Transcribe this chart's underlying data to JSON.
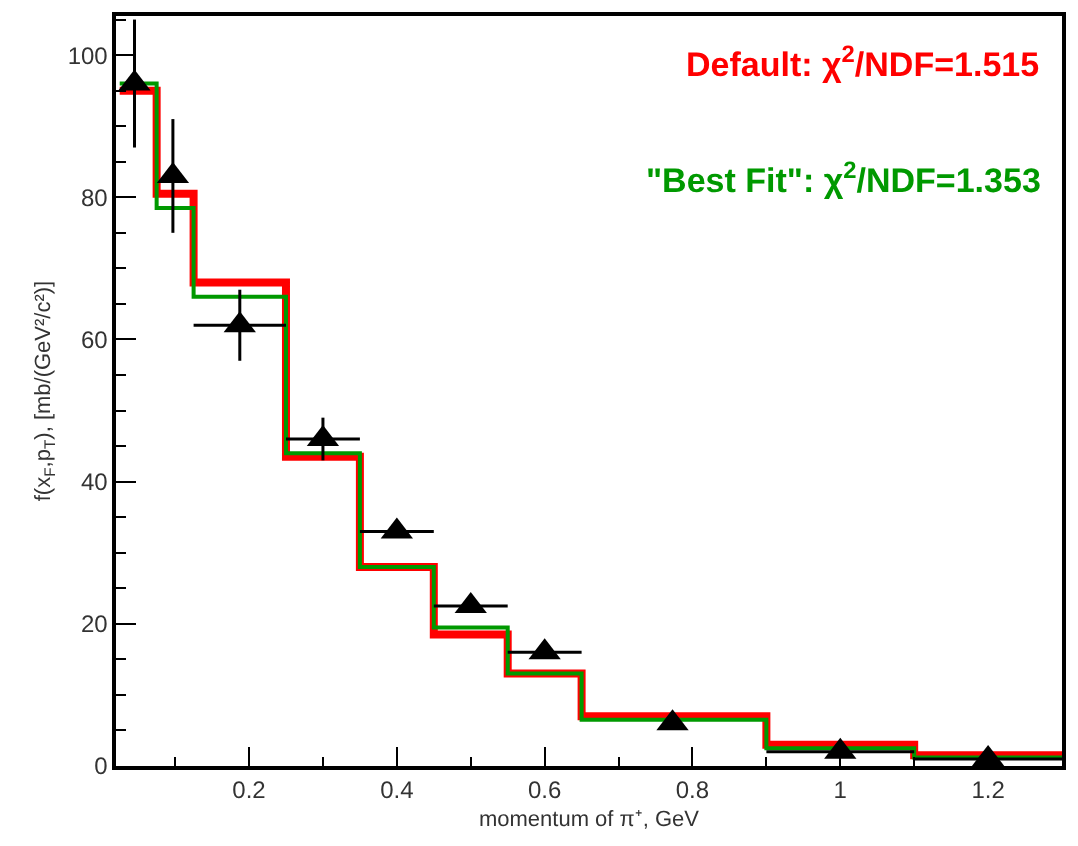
{
  "chart_data": {
    "type": "histogram",
    "xlabel": "momentum of π⁺, GeV",
    "ylabel": "f(x$_{F}$,p$_{T}$), [mb/(GeV²/c²)]",
    "bins": [
      0.025,
      0.075,
      0.125,
      0.25,
      0.35,
      0.45,
      0.55,
      0.65,
      0.9,
      1.1,
      1.3
    ],
    "series": [
      {
        "color": "#ff0000",
        "values": [
          95,
          80.5,
          68,
          43.5,
          28,
          18.5,
          13,
          7,
          3,
          1.5
        ]
      },
      {
        "color": "#009900",
        "values": [
          96,
          78.5,
          66,
          44,
          28,
          19.5,
          13,
          6.5,
          2.5,
          1.2
        ]
      },
      {
        "type": "scatter",
        "color": "#000000",
        "marker": "triangle",
        "x": [
          0.045,
          0.097,
          0.1875,
          0.3,
          0.4,
          0.5,
          0.6,
          0.773,
          1.0,
          1.2
        ],
        "values": [
          96,
          83,
          62,
          46,
          33,
          22.5,
          16,
          6,
          2,
          1
        ],
        "errors": [
          9,
          8,
          5,
          3,
          null,
          null,
          null,
          null,
          null,
          null
        ],
        "xerrors": [
          null,
          null,
          0.0625,
          0.05,
          0.05,
          0.05,
          0.05,
          null,
          0.1,
          0.1
        ]
      }
    ],
    "annotations": [
      "Default: χ$^{2}$/NDF=1.515",
      "\"Best Fit\": χ$^{2}$/NDF=1.353"
    ],
    "xlim": [
      0.02,
      1.3
    ],
    "xticks": [
      0.2,
      0.4,
      0.6,
      0.8,
      1,
      1.2
    ],
    "ylim": [
      0,
      105.5
    ],
    "yticks": [
      0,
      20,
      40,
      60,
      80,
      100
    ]
  }
}
